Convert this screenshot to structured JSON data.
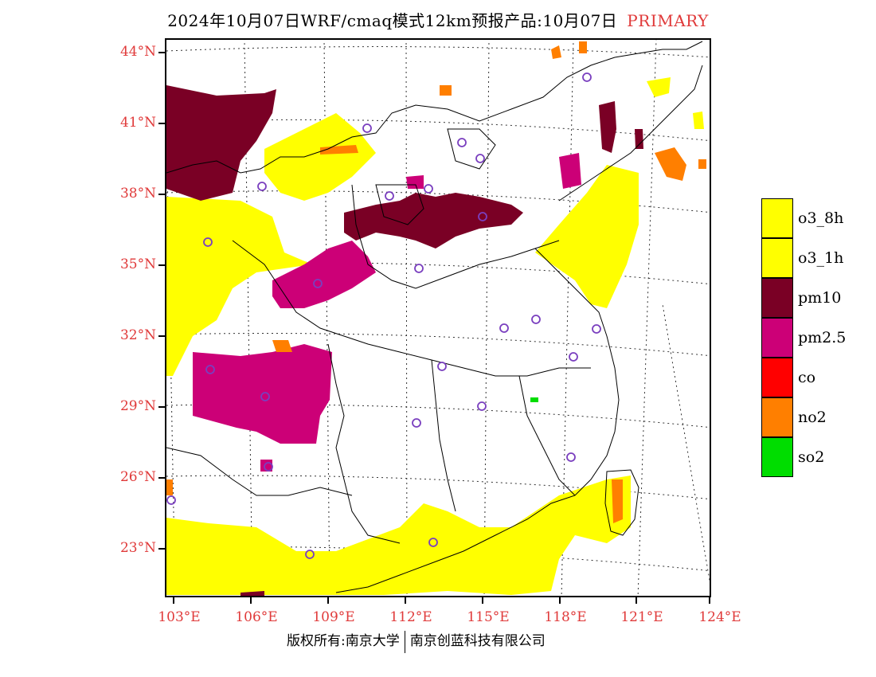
{
  "header": {
    "title": "2024年10月07日WRF/cmaq模式12km预报产品:10月07日",
    "tag": "PRIMARY"
  },
  "map": {
    "lat_labels": [
      "44°N",
      "41°N",
      "38°N",
      "35°N",
      "32°N",
      "29°N",
      "26°N",
      "23°N"
    ],
    "lon_labels": [
      "103°E",
      "106°E",
      "109°E",
      "112°E",
      "115°E",
      "118°E",
      "121°E",
      "124°E"
    ],
    "colors": {
      "o3": "#ffff00",
      "pm10": "#7a0025",
      "pm25": "#cc0077",
      "co": "#ff0000",
      "no2": "#ff7f00",
      "so2": "#00dd00",
      "station": "#7a3fbf"
    }
  },
  "legend": {
    "items": [
      {
        "label": "o3_8h",
        "color": "#ffff00"
      },
      {
        "label": "o3_1h",
        "color": "#ffff00"
      },
      {
        "label": "pm10",
        "color": "#7a0025"
      },
      {
        "label": "pm2.5",
        "color": "#cc0077"
      },
      {
        "label": "co",
        "color": "#ff0000"
      },
      {
        "label": "no2",
        "color": "#ff7f00"
      },
      {
        "label": "so2",
        "color": "#00dd00"
      }
    ]
  },
  "footer": {
    "left": "版权所有:南京大学",
    "right": "南京创蓝科技有限公司"
  }
}
